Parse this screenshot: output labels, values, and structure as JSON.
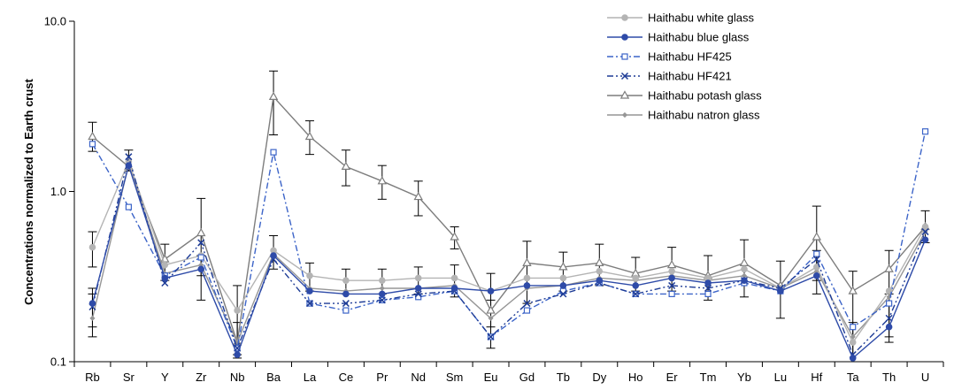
{
  "chart_data": {
    "type": "line",
    "title": "",
    "xlabel": "",
    "ylabel": "Concentrations normalized to Earth crust",
    "yscale": "log",
    "ylim": [
      0.1,
      10.0
    ],
    "ytick_labels": [
      "0.1",
      "1.0",
      "10.0"
    ],
    "grid": false,
    "legend_position": "top-right",
    "categories": [
      "Rb",
      "Sr",
      "Y",
      "Zr",
      "Nb",
      "Ba",
      "La",
      "Ce",
      "Pr",
      "Nd",
      "Sm",
      "Eu",
      "Gd",
      "Tb",
      "Dy",
      "Ho",
      "Er",
      "Tm",
      "Yb",
      "Lu",
      "Hf",
      "Ta",
      "Th",
      "U"
    ],
    "series": [
      {
        "name": "Haithabu white glass",
        "color": "#b4b4b4",
        "marker": "circle-filled",
        "dash": "solid",
        "values": [
          0.47,
          1.5,
          0.37,
          0.42,
          0.2,
          0.45,
          0.32,
          0.3,
          0.3,
          0.31,
          0.31,
          0.26,
          0.31,
          0.31,
          0.34,
          0.31,
          0.34,
          0.31,
          0.35,
          0.27,
          0.36,
          0.13,
          0.26,
          0.62
        ]
      },
      {
        "name": "Haithabu blue glass",
        "color": "#2e4ba8",
        "marker": "circle-filled",
        "dash": "solid",
        "values": [
          0.22,
          1.42,
          0.31,
          0.35,
          0.11,
          0.42,
          0.26,
          0.25,
          0.25,
          0.27,
          0.27,
          0.26,
          0.28,
          0.28,
          0.3,
          0.28,
          0.31,
          0.29,
          0.3,
          0.26,
          0.32,
          0.105,
          0.16,
          0.52
        ]
      },
      {
        "name": "Haithabu HF425",
        "color": "#3c64c8",
        "marker": "square-open",
        "dash": "dashdot",
        "values": [
          1.9,
          0.81,
          0.32,
          0.41,
          0.12,
          1.7,
          0.22,
          0.2,
          0.23,
          0.24,
          0.26,
          0.14,
          0.2,
          0.26,
          0.29,
          0.25,
          0.25,
          0.25,
          0.29,
          0.26,
          0.43,
          0.16,
          0.22,
          2.25
        ]
      },
      {
        "name": "Haithabu HF421",
        "color": "#1e3c96",
        "marker": "x",
        "dash": "dashdotdot",
        "values": [
          0.21,
          1.6,
          0.29,
          0.5,
          0.12,
          0.4,
          0.22,
          0.22,
          0.23,
          0.25,
          0.26,
          0.14,
          0.22,
          0.25,
          0.29,
          0.25,
          0.28,
          0.27,
          0.3,
          0.27,
          0.4,
          0.11,
          0.18,
          0.58
        ]
      },
      {
        "name": "Haithabu potash glass",
        "color": "#7d7d7d",
        "marker": "triangle-open",
        "dash": "solid",
        "values": [
          2.1,
          1.4,
          0.4,
          0.57,
          0.13,
          3.6,
          2.1,
          1.4,
          1.15,
          0.93,
          0.54,
          0.2,
          0.38,
          0.36,
          0.38,
          0.33,
          0.37,
          0.32,
          0.38,
          0.28,
          0.54,
          0.26,
          0.35,
          0.62
        ]
      },
      {
        "name": "Haithabu natron glass",
        "color": "#969696",
        "marker": "diamond-small",
        "dash": "solid",
        "values": [
          0.18,
          1.45,
          0.33,
          0.37,
          0.13,
          0.43,
          0.27,
          0.26,
          0.27,
          0.27,
          0.28,
          0.18,
          0.27,
          0.28,
          0.31,
          0.3,
          0.32,
          0.3,
          0.32,
          0.27,
          0.34,
          0.14,
          0.24,
          0.58
        ]
      }
    ],
    "error_bars": [
      {
        "category": "Rb",
        "low": 0.36,
        "high": 0.58
      },
      {
        "category": "Rb",
        "low": 0.14,
        "high": 0.25
      },
      {
        "category": "Rb",
        "low": 0.16,
        "high": 0.27
      },
      {
        "category": "Rb",
        "low": 1.72,
        "high": 2.55
      },
      {
        "category": "Sr",
        "low": 1.32,
        "high": 1.75
      },
      {
        "category": "Y",
        "low": 0.3,
        "high": 0.49
      },
      {
        "category": "Zr",
        "low": 0.23,
        "high": 0.91
      },
      {
        "category": "Zr",
        "low": 0.32,
        "high": 0.42
      },
      {
        "category": "Nb",
        "low": 0.105,
        "high": 0.28
      },
      {
        "category": "Nb",
        "low": 0.11,
        "high": 0.17
      },
      {
        "category": "Ba",
        "low": 2.15,
        "high": 5.1
      },
      {
        "category": "Ba",
        "low": 0.35,
        "high": 0.55
      },
      {
        "category": "La",
        "low": 1.65,
        "high": 2.6
      },
      {
        "category": "La",
        "low": 0.26,
        "high": 0.38
      },
      {
        "category": "Ce",
        "low": 1.08,
        "high": 1.75
      },
      {
        "category": "Ce",
        "low": 0.25,
        "high": 0.35
      },
      {
        "category": "Pr",
        "low": 0.9,
        "high": 1.42
      },
      {
        "category": "Pr",
        "low": 0.25,
        "high": 0.35
      },
      {
        "category": "Nd",
        "low": 0.72,
        "high": 1.15
      },
      {
        "category": "Nd",
        "low": 0.25,
        "high": 0.36
      },
      {
        "category": "Sm",
        "low": 0.46,
        "high": 0.62
      },
      {
        "category": "Sm",
        "low": 0.24,
        "high": 0.37
      },
      {
        "category": "Eu",
        "low": 0.12,
        "high": 0.33
      },
      {
        "category": "Eu",
        "low": 0.16,
        "high": 0.23
      },
      {
        "category": "Gd",
        "low": 0.22,
        "high": 0.51
      },
      {
        "category": "Tb",
        "low": 0.26,
        "high": 0.44
      },
      {
        "category": "Dy",
        "low": 0.28,
        "high": 0.49
      },
      {
        "category": "Ho",
        "low": 0.26,
        "high": 0.41
      },
      {
        "category": "Er",
        "low": 0.26,
        "high": 0.47
      },
      {
        "category": "Tm",
        "low": 0.23,
        "high": 0.42
      },
      {
        "category": "Yb",
        "low": 0.24,
        "high": 0.52
      },
      {
        "category": "Lu",
        "low": 0.18,
        "high": 0.39
      },
      {
        "category": "Hf",
        "low": 0.25,
        "high": 0.82
      },
      {
        "category": "Hf",
        "low": 0.3,
        "high": 0.45
      },
      {
        "category": "Ta",
        "low": 0.1,
        "high": 0.34
      },
      {
        "category": "Ta",
        "low": 0.1,
        "high": 0.17
      },
      {
        "category": "Th",
        "low": 0.13,
        "high": 0.45
      },
      {
        "category": "Th",
        "low": 0.14,
        "high": 0.25
      },
      {
        "category": "U",
        "low": 0.5,
        "high": 0.77
      }
    ]
  }
}
